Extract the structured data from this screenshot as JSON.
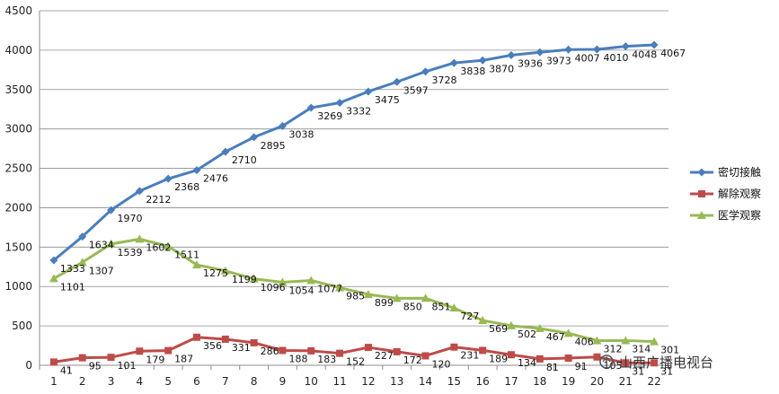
{
  "chart_data": {
    "type": "line",
    "title": "",
    "xlabel": "",
    "ylabel": "",
    "x": [
      1,
      2,
      3,
      4,
      5,
      6,
      7,
      8,
      9,
      10,
      11,
      12,
      13,
      14,
      15,
      16,
      17,
      18,
      19,
      20,
      21,
      22
    ],
    "ylim": [
      0,
      4500
    ],
    "yticks": [
      0,
      500,
      1000,
      1500,
      2000,
      2500,
      3000,
      3500,
      4000,
      4500
    ],
    "grid": "horizontal",
    "legend_position": "right",
    "series": [
      {
        "name": "密切接触",
        "color": "#4a7ebb",
        "marker": "diamond",
        "values": [
          1333,
          1634,
          1970,
          2212,
          2368,
          2476,
          2710,
          2895,
          3038,
          3269,
          3332,
          3475,
          3597,
          3728,
          3838,
          3870,
          3936,
          3973,
          4007,
          4010,
          4048,
          4067
        ]
      },
      {
        "name": "解除观察",
        "color": "#be4b48",
        "marker": "square",
        "values": [
          41,
          95,
          101,
          179,
          187,
          356,
          331,
          286,
          188,
          183,
          152,
          227,
          172,
          120,
          231,
          189,
          134,
          81,
          91,
          105,
          31,
          31
        ]
      },
      {
        "name": "医学观察",
        "color": "#98b954",
        "marker": "triangle",
        "values": [
          1101,
          1307,
          1539,
          1602,
          1511,
          1275,
          1199,
          1096,
          1054,
          1077,
          985,
          899,
          850,
          851,
          727,
          569,
          502,
          467,
          406,
          312,
          314,
          301
        ]
      }
    ]
  },
  "watermark": {
    "text": "山西广播电视台",
    "icon": "broadcast-logo-icon"
  }
}
